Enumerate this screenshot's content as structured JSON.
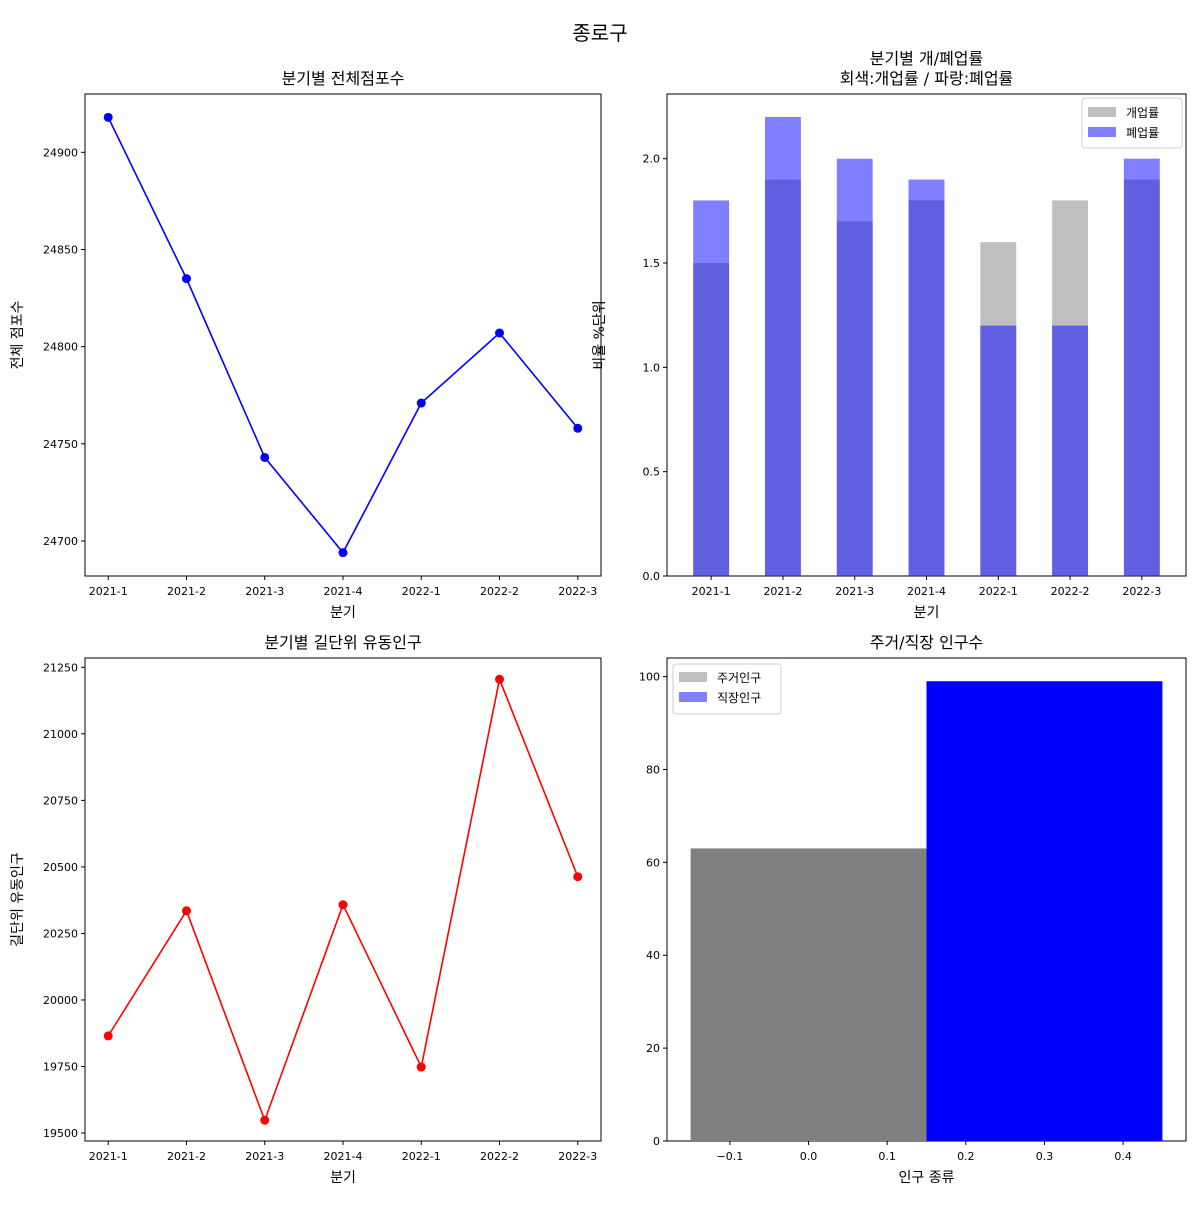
{
  "suptitle": "종로구",
  "chart_data": [
    {
      "type": "line",
      "title": "분기별 전체점포수",
      "xlabel": "분기",
      "ylabel": "전체 점포수",
      "categories": [
        "2021-1",
        "2021-2",
        "2021-3",
        "2021-4",
        "2022-1",
        "2022-2",
        "2022-3"
      ],
      "values": [
        24918,
        24835,
        24743,
        24694,
        24771,
        24807,
        24758
      ],
      "ylim": [
        24682,
        24930
      ],
      "yticks": [
        24700,
        24750,
        24800,
        24850,
        24900
      ],
      "color": "#0000ff",
      "marker": "circle",
      "grid": false
    },
    {
      "type": "bar",
      "title": "분기별 개/폐업률",
      "subtitle": "회색:개업률 / 파랑:폐업률",
      "xlabel": "분기",
      "ylabel": "비율 %단위",
      "categories": [
        "2021-1",
        "2021-2",
        "2021-3",
        "2021-4",
        "2022-1",
        "2022-2",
        "2022-3"
      ],
      "series": [
        {
          "name": "개업률",
          "values": [
            1.5,
            1.9,
            1.7,
            1.8,
            1.6,
            1.8,
            1.9
          ],
          "color": "#808080",
          "opacity": 0.5
        },
        {
          "name": "폐업률",
          "values": [
            1.8,
            2.2,
            2.0,
            1.9,
            1.2,
            1.2,
            2.0
          ],
          "color": "#0000ff",
          "opacity": 0.5
        }
      ],
      "ylim": [
        0,
        2.31
      ],
      "yticks": [
        "0.0",
        "0.5",
        "1.0",
        "1.5",
        "2.0"
      ],
      "legend": "top-right",
      "grid": false
    },
    {
      "type": "line",
      "title": "분기별 길단위 유동인구",
      "xlabel": "분기",
      "ylabel": "길단위 유동인구",
      "categories": [
        "2021-1",
        "2021-2",
        "2021-3",
        "2021-4",
        "2022-1",
        "2022-2",
        "2022-3"
      ],
      "values": [
        19865,
        20335,
        19548,
        20358,
        19748,
        21205,
        20463
      ],
      "ylim": [
        19470,
        21285
      ],
      "yticks": [
        19500,
        19750,
        20000,
        20250,
        20500,
        20750,
        21000,
        21250
      ],
      "color": "#ff0000",
      "marker": "circle",
      "grid": false
    },
    {
      "type": "bar",
      "title": "주거/직장 인구수",
      "xlabel": "인구 종류",
      "ylabel": "",
      "series": [
        {
          "name": "주거인구",
          "value": 63,
          "x_center": 0.0,
          "width": 0.3,
          "color": "#808080"
        },
        {
          "name": "직장인구",
          "value": 99,
          "x_center": 0.3,
          "width": 0.3,
          "color": "#0000ff"
        }
      ],
      "xlim": [
        -0.18,
        0.48
      ],
      "ylim": [
        0,
        104
      ],
      "xticks": [
        "−0.1",
        "0.0",
        "0.1",
        "0.2",
        "0.3",
        "0.4"
      ],
      "xtick_values": [
        -0.1,
        0.0,
        0.1,
        0.2,
        0.3,
        0.4
      ],
      "yticks": [
        0,
        20,
        40,
        60,
        80,
        100
      ],
      "legend": "top-left",
      "grid": false
    }
  ]
}
